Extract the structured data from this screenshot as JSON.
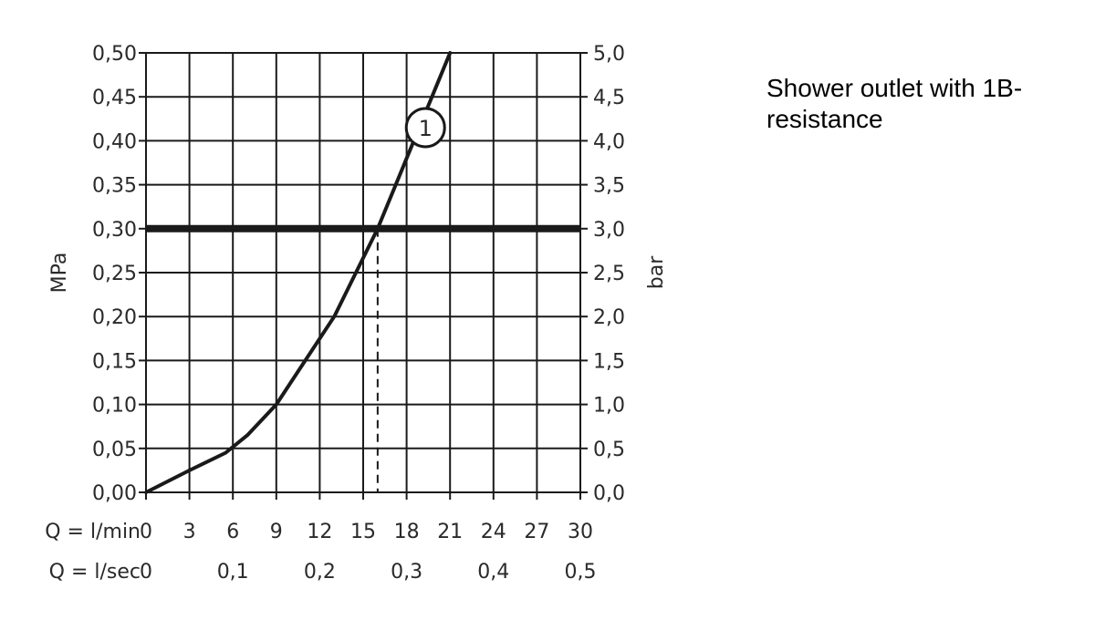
{
  "caption": "Shower outlet with 1B-resistance",
  "chart_data": {
    "type": "line",
    "title": "",
    "x_axis_labels": {
      "primary": "Q = l/min",
      "secondary": "Q = l/sec"
    },
    "y_axis_labels": {
      "left": "MPa",
      "right": "bar"
    },
    "xlim": [
      0,
      30
    ],
    "ylim": [
      0,
      0.5
    ],
    "x_ticks": [
      "0",
      "3",
      "6",
      "9",
      "12",
      "15",
      "18",
      "21",
      "24",
      "27",
      "30"
    ],
    "x_secondary_ticks": [
      {
        "x": 0,
        "label": "0"
      },
      {
        "x": 6,
        "label": "0,1"
      },
      {
        "x": 12,
        "label": "0,2"
      },
      {
        "x": 18,
        "label": "0,3"
      },
      {
        "x": 24,
        "label": "0,4"
      },
      {
        "x": 30,
        "label": "0,5"
      }
    ],
    "y_ticks_left": [
      "0,00",
      "0,05",
      "0,10",
      "0,15",
      "0,20",
      "0,25",
      "0,30",
      "0,35",
      "0,40",
      "0,45",
      "0,50"
    ],
    "y_ticks_right": [
      "0,0",
      "0,5",
      "1,0",
      "1,5",
      "2,0",
      "2,5",
      "3,0",
      "3,5",
      "4,0",
      "4,5",
      "5,0"
    ],
    "grid": true,
    "series": [
      {
        "name": "1",
        "x": [
          0,
          3,
          5.5,
          7,
          9,
          11,
          13,
          14.5,
          16,
          17,
          18,
          19,
          20,
          21
        ],
        "y": [
          0,
          0.025,
          0.045,
          0.065,
          0.1,
          0.15,
          0.2,
          0.25,
          0.3,
          0.34,
          0.38,
          0.42,
          0.46,
          0.5
        ]
      }
    ],
    "reference_line": {
      "y": 0.3
    },
    "marker_line": {
      "x": 16,
      "y": 0.3
    },
    "series_label": {
      "text": "1",
      "x": 19.3,
      "y": 0.415
    },
    "colors": {
      "line": "#1a1a1a",
      "grid": "#1a1a1a",
      "text": "#2a2a2a"
    }
  }
}
